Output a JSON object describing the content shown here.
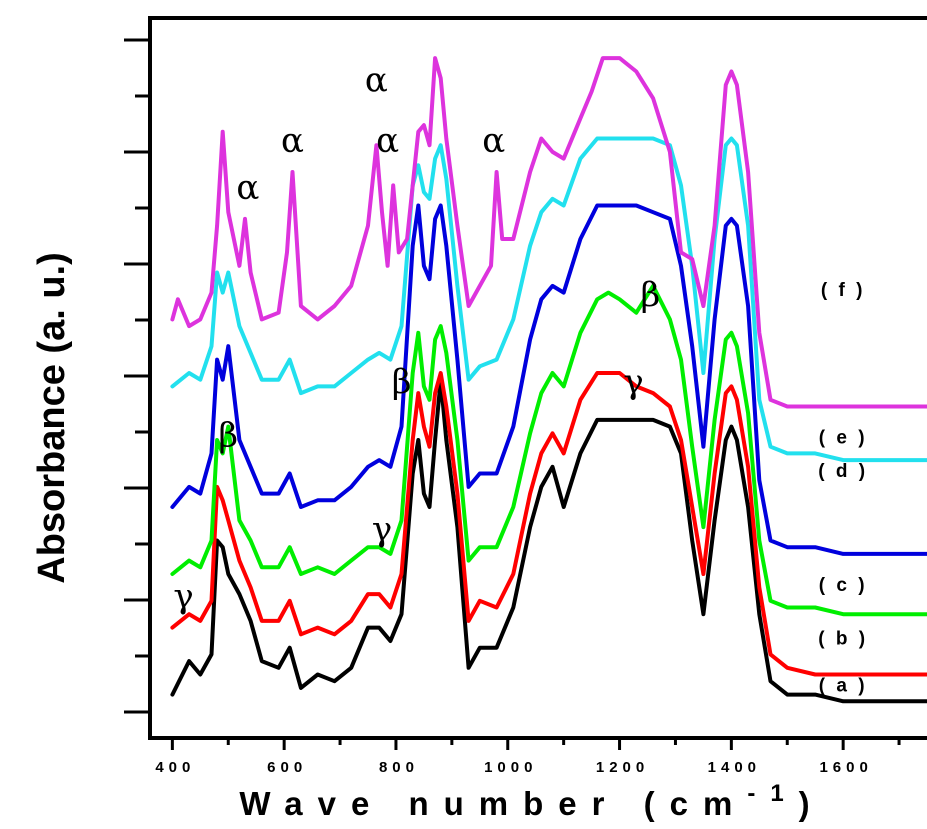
{
  "chart_data": {
    "type": "line",
    "title": "",
    "xlabel": "Wave number (cm",
    "xlabel_superscript": "-1",
    "xlabel_close": ")",
    "ylabel": "Absorbance (a. u.)",
    "xlim": [
      360,
      1750
    ],
    "ylim": [
      0,
      100
    ],
    "x_ticks": [
      400,
      600,
      800,
      1000,
      1200,
      1400,
      1600
    ],
    "y_ticks_labeled": false,
    "grid": false,
    "legend": "inline labels at right",
    "series": [
      {
        "name": "( a )",
        "color": "#000000",
        "x": [
          400,
          430,
          450,
          470,
          480,
          490,
          500,
          520,
          540,
          560,
          590,
          610,
          630,
          660,
          690,
          720,
          750,
          770,
          790,
          810,
          830,
          840,
          850,
          860,
          870,
          880,
          890,
          910,
          930,
          950,
          980,
          1010,
          1040,
          1060,
          1080,
          1100,
          1130,
          1160,
          1180,
          1200,
          1230,
          1260,
          1290,
          1310,
          1330,
          1350,
          1370,
          1390,
          1400,
          1410,
          1430,
          1450,
          1470,
          1500,
          1550,
          1600,
          1650,
          1700,
          1750
        ],
        "y": [
          2,
          7,
          5,
          8,
          25,
          24,
          20,
          17,
          13,
          7,
          6,
          9,
          3,
          5,
          4,
          6,
          12,
          12,
          10,
          14,
          35,
          40,
          32,
          30,
          40,
          49,
          40,
          27,
          6,
          9,
          9,
          15,
          27,
          33,
          36,
          30,
          38,
          43,
          43,
          43,
          43,
          43,
          42,
          38,
          25,
          14,
          28,
          40,
          42,
          40,
          30,
          14,
          4,
          2,
          2,
          1,
          1,
          1,
          1
        ]
      },
      {
        "name": "( b )",
        "color": "#ff0000",
        "x": [
          400,
          430,
          450,
          470,
          480,
          490,
          500,
          520,
          540,
          560,
          590,
          610,
          630,
          660,
          690,
          720,
          750,
          770,
          790,
          810,
          830,
          840,
          850,
          860,
          870,
          880,
          890,
          910,
          930,
          950,
          980,
          1010,
          1040,
          1060,
          1080,
          1100,
          1130,
          1160,
          1180,
          1200,
          1230,
          1260,
          1290,
          1310,
          1330,
          1350,
          1370,
          1390,
          1400,
          1410,
          1430,
          1450,
          1470,
          1500,
          1550,
          1600,
          1650,
          1700,
          1750
        ],
        "y": [
          12,
          14,
          13,
          16,
          33,
          31,
          28,
          22,
          18,
          13,
          13,
          16,
          11,
          12,
          11,
          13,
          17,
          17,
          15,
          20,
          40,
          47,
          42,
          39,
          47,
          50,
          45,
          32,
          13,
          16,
          15,
          20,
          32,
          38,
          41,
          38,
          46,
          50,
          50,
          50,
          48,
          47,
          45,
          40,
          30,
          20,
          35,
          47,
          48,
          46,
          36,
          18,
          8,
          6,
          5,
          5,
          5,
          5,
          5
        ]
      },
      {
        "name": "( c )",
        "color": "#00ee00",
        "x": [
          400,
          430,
          450,
          470,
          480,
          490,
          500,
          520,
          540,
          560,
          590,
          610,
          630,
          660,
          690,
          720,
          750,
          770,
          790,
          810,
          830,
          840,
          850,
          860,
          870,
          880,
          890,
          910,
          930,
          950,
          980,
          1010,
          1040,
          1060,
          1080,
          1100,
          1130,
          1160,
          1180,
          1200,
          1230,
          1260,
          1290,
          1310,
          1330,
          1350,
          1370,
          1390,
          1400,
          1410,
          1430,
          1450,
          1470,
          1500,
          1550,
          1600,
          1650,
          1700,
          1750
        ],
        "y": [
          20,
          22,
          21,
          25,
          40,
          38,
          42,
          28,
          25,
          21,
          21,
          24,
          20,
          21,
          20,
          22,
          24,
          24,
          23,
          28,
          50,
          56,
          48,
          46,
          55,
          57,
          53,
          40,
          22,
          24,
          24,
          30,
          41,
          47,
          50,
          48,
          56,
          61,
          62,
          61,
          59,
          63,
          58,
          52,
          39,
          27,
          43,
          55,
          56,
          54,
          44,
          25,
          16,
          15,
          15,
          14,
          14,
          14,
          14
        ]
      },
      {
        "name": "( d )",
        "color": "#0000dd",
        "x": [
          400,
          430,
          450,
          470,
          480,
          490,
          500,
          520,
          540,
          560,
          590,
          610,
          630,
          660,
          690,
          720,
          750,
          770,
          790,
          810,
          830,
          840,
          850,
          860,
          870,
          880,
          890,
          910,
          930,
          950,
          980,
          1010,
          1040,
          1060,
          1080,
          1100,
          1130,
          1160,
          1180,
          1200,
          1230,
          1260,
          1290,
          1310,
          1330,
          1350,
          1370,
          1390,
          1400,
          1410,
          1430,
          1450,
          1470,
          1500,
          1550,
          1600,
          1650,
          1700,
          1750
        ],
        "y": [
          30,
          33,
          32,
          38,
          52,
          49,
          54,
          40,
          36,
          32,
          32,
          35,
          30,
          31,
          31,
          33,
          36,
          37,
          36,
          42,
          69,
          75,
          66,
          64,
          73,
          75,
          69,
          52,
          33,
          35,
          35,
          42,
          55,
          61,
          63,
          62,
          70,
          75,
          75,
          75,
          75,
          74,
          73,
          66,
          54,
          39,
          58,
          72,
          73,
          72,
          60,
          34,
          25,
          24,
          24,
          23,
          23,
          23,
          23
        ]
      },
      {
        "name": "( e )",
        "color": "#22e0ee",
        "x": [
          400,
          430,
          450,
          470,
          480,
          490,
          500,
          520,
          540,
          560,
          590,
          610,
          630,
          660,
          690,
          720,
          750,
          770,
          790,
          810,
          830,
          840,
          850,
          860,
          870,
          880,
          890,
          910,
          930,
          950,
          980,
          1010,
          1040,
          1060,
          1080,
          1100,
          1130,
          1160,
          1180,
          1200,
          1230,
          1260,
          1290,
          1310,
          1330,
          1350,
          1370,
          1390,
          1400,
          1410,
          1430,
          1450,
          1470,
          1500,
          1550,
          1600,
          1650,
          1700,
          1750
        ],
        "y": [
          48,
          50,
          49,
          54,
          65,
          62,
          65,
          57,
          53,
          49,
          49,
          52,
          47,
          48,
          48,
          50,
          52,
          53,
          52,
          57,
          78,
          81,
          77,
          76,
          82,
          84,
          79,
          63,
          49,
          51,
          52,
          58,
          69,
          74,
          76,
          75,
          82,
          85,
          85,
          85,
          85,
          85,
          84,
          78,
          66,
          50,
          70,
          84,
          85,
          84,
          72,
          46,
          39,
          38,
          38,
          37,
          37,
          37,
          37
        ]
      },
      {
        "name": "( f )",
        "color": "#dd33dd",
        "x": [
          400,
          410,
          430,
          450,
          470,
          480,
          490,
          500,
          520,
          530,
          540,
          560,
          590,
          605,
          615,
          630,
          660,
          690,
          720,
          750,
          765,
          775,
          785,
          795,
          805,
          820,
          840,
          850,
          860,
          870,
          880,
          890,
          910,
          930,
          950,
          970,
          980,
          990,
          1010,
          1040,
          1060,
          1080,
          1100,
          1130,
          1150,
          1170,
          1200,
          1230,
          1260,
          1290,
          1310,
          1330,
          1350,
          1370,
          1390,
          1400,
          1410,
          1430,
          1450,
          1470,
          1500,
          1550,
          1600,
          1650,
          1700,
          1750
        ],
        "y": [
          58,
          61,
          57,
          58,
          62,
          72,
          86,
          74,
          66,
          73,
          65,
          58,
          59,
          68,
          80,
          60,
          58,
          60,
          63,
          72,
          84,
          74,
          66,
          78,
          68,
          70,
          86,
          87,
          84,
          97,
          94,
          85,
          72,
          60,
          63,
          66,
          80,
          70,
          70,
          80,
          85,
          83,
          82,
          88,
          92,
          97,
          97,
          95,
          91,
          83,
          68,
          67,
          60,
          72,
          93,
          95,
          93,
          80,
          56,
          46,
          45,
          45,
          45,
          45,
          45,
          45
        ]
      }
    ],
    "annotations": [
      {
        "text": "α",
        "x": 535,
        "y": 76
      },
      {
        "text": "α",
        "x": 615,
        "y": 83
      },
      {
        "text": "α",
        "x": 765,
        "y": 92
      },
      {
        "text": "α",
        "x": 785,
        "y": 83
      },
      {
        "text": "α",
        "x": 975,
        "y": 83
      },
      {
        "text": "β",
        "x": 500,
        "y": 39
      },
      {
        "text": "β",
        "x": 810,
        "y": 47
      },
      {
        "text": "β",
        "x": 1255,
        "y": 60
      },
      {
        "text": "γ",
        "x": 420,
        "y": 15
      },
      {
        "text": "γ",
        "x": 775,
        "y": 25
      },
      {
        "text": "γ",
        "x": 1225,
        "y": 47
      }
    ],
    "curve_labels": [
      {
        "text": "( f )",
        "x": 1600,
        "y": 60
      },
      {
        "text": "( e )",
        "x": 1600,
        "y": 38
      },
      {
        "text": "( d )",
        "x": 1600,
        "y": 33
      },
      {
        "text": "( c )",
        "x": 1600,
        "y": 16
      },
      {
        "text": "( b )",
        "x": 1600,
        "y": 8
      },
      {
        "text": "( a )",
        "x": 1600,
        "y": 1
      }
    ]
  }
}
